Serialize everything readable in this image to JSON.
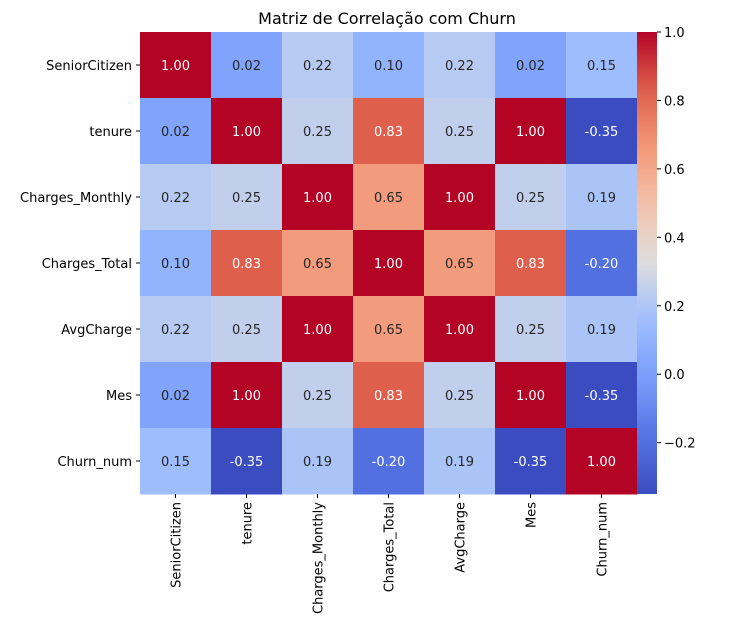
{
  "chart_data": {
    "type": "heatmap",
    "title": "Matriz de Correlação com Churn",
    "xlabel": "",
    "ylabel": "",
    "x_categories": [
      "SeniorCitizen",
      "tenure",
      "Charges_Monthly",
      "Charges_Total",
      "AvgCharge",
      "Mes",
      "Churn_num"
    ],
    "y_categories": [
      "SeniorCitizen",
      "tenure",
      "Charges_Monthly",
      "Charges_Total",
      "AvgCharge",
      "Mes",
      "Churn_num"
    ],
    "values": [
      [
        1.0,
        0.02,
        0.22,
        0.1,
        0.22,
        0.02,
        0.15
      ],
      [
        0.02,
        1.0,
        0.25,
        0.83,
        0.25,
        1.0,
        -0.35
      ],
      [
        0.22,
        0.25,
        1.0,
        0.65,
        1.0,
        0.25,
        0.19
      ],
      [
        0.1,
        0.83,
        0.65,
        1.0,
        0.65,
        0.83,
        -0.2
      ],
      [
        0.22,
        0.25,
        1.0,
        0.65,
        1.0,
        0.25,
        0.19
      ],
      [
        0.02,
        1.0,
        0.25,
        0.83,
        0.25,
        1.0,
        -0.35
      ],
      [
        0.15,
        -0.35,
        0.19,
        -0.2,
        0.19,
        -0.35,
        1.0
      ]
    ],
    "value_format": "2 decimals",
    "colormap": "coolwarm",
    "color_range": [
      -0.35,
      1.0
    ],
    "colorbar": {
      "placement": "right",
      "ticks": [
        1.0,
        0.8,
        0.6,
        0.4,
        0.2,
        0.0,
        -0.2
      ],
      "tick_labels": [
        "1.0",
        "0.8",
        "0.6",
        "0.4",
        "0.2",
        "0.0",
        "−0.2"
      ]
    },
    "grid": false
  }
}
